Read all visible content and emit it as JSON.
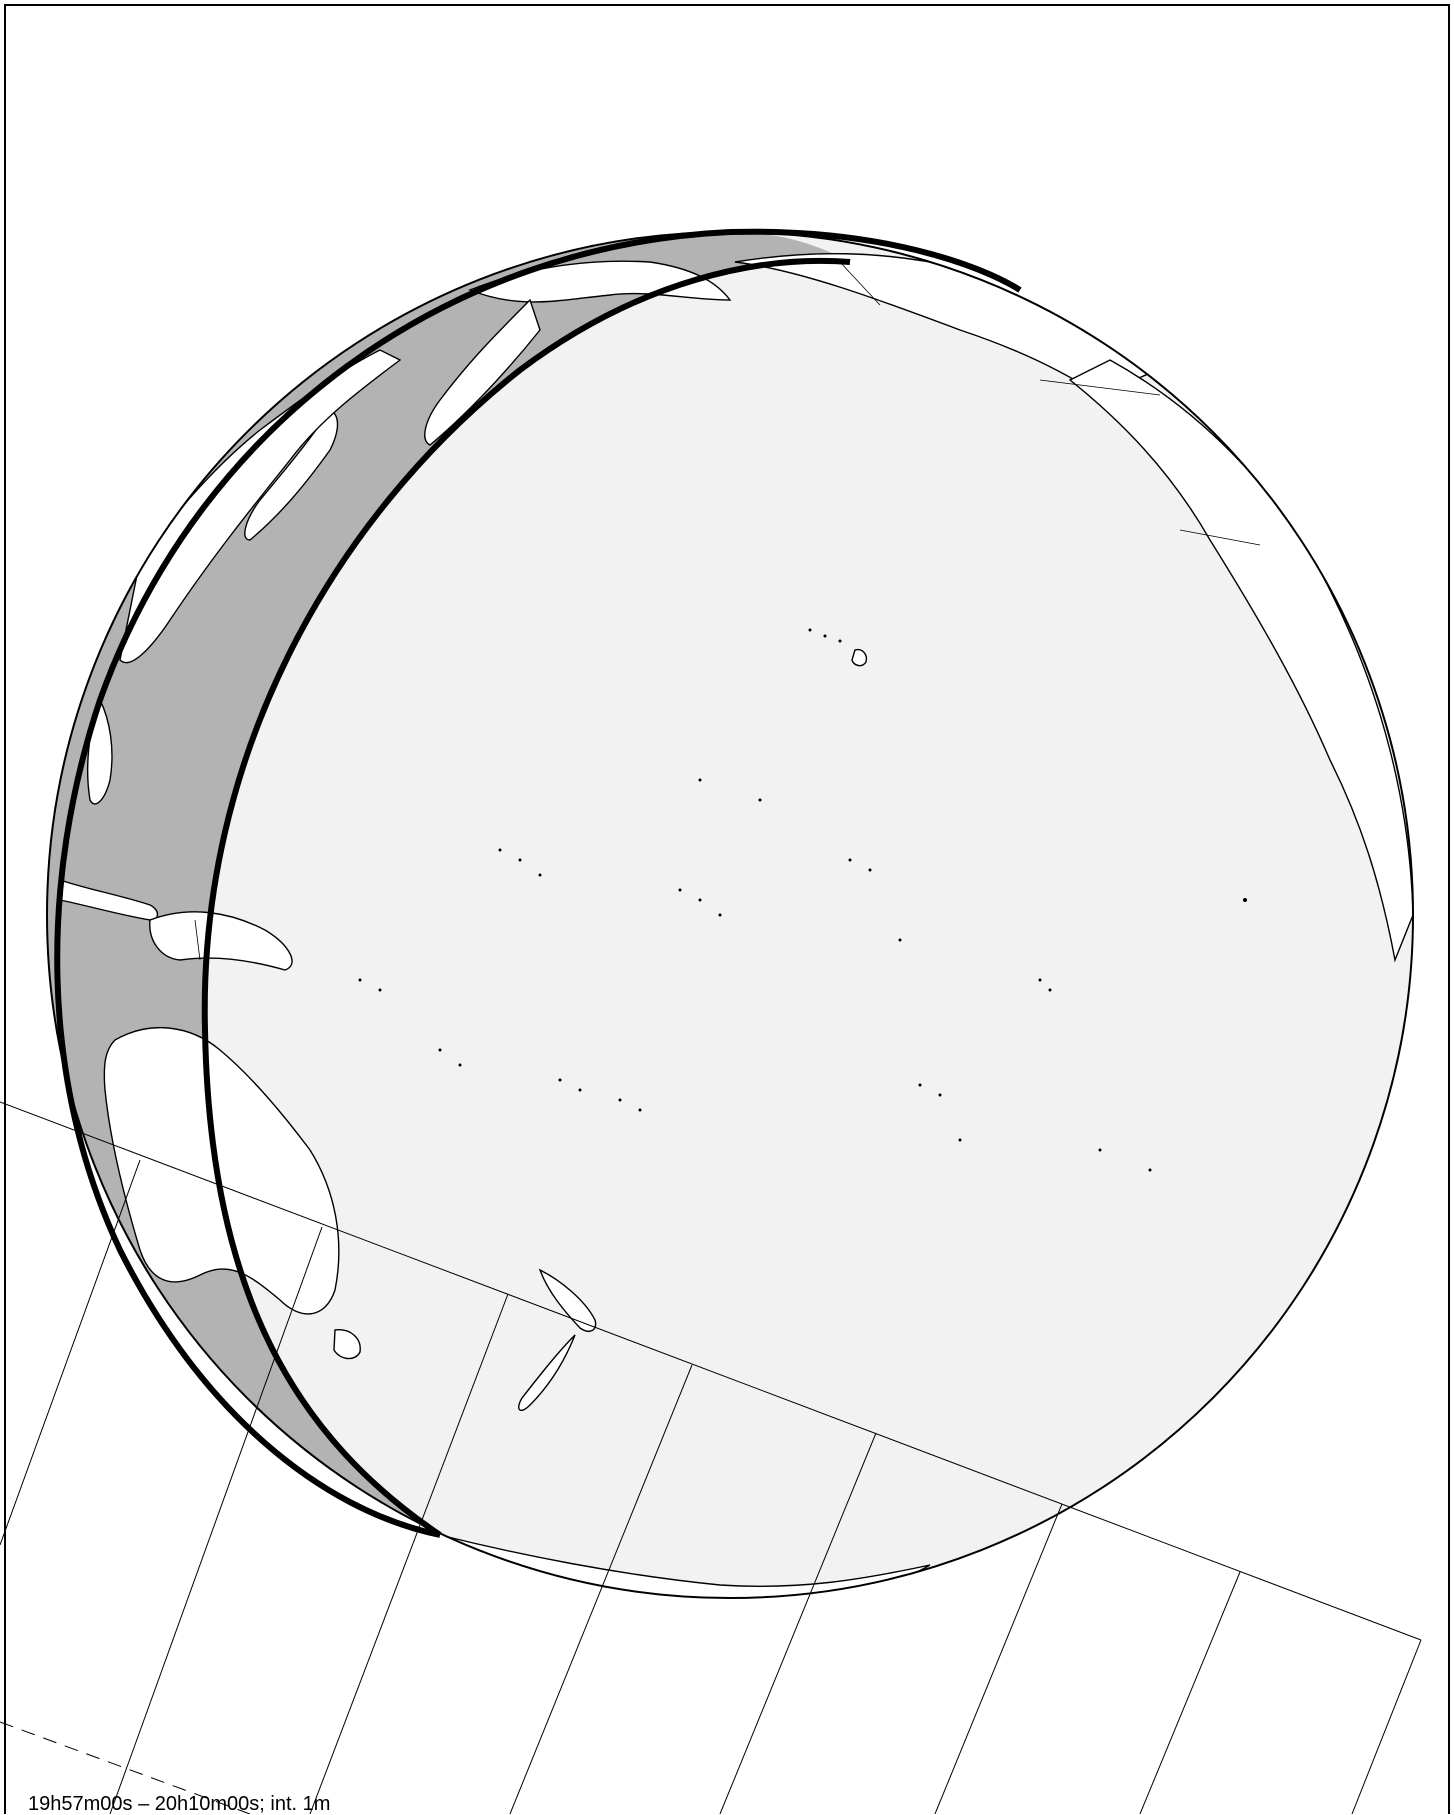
{
  "caption": "19h57m00s – 20h10m00s; int.  1m",
  "colors": {
    "background": "#ffffff",
    "frame": "#000000",
    "ocean_day": "#f2f2f2",
    "night_shade": "#b3b3b3",
    "land": "#ffffff",
    "coastline": "#000000",
    "terminator": "#000000"
  },
  "map": {
    "projection": "orthographic",
    "terminator_lines": 2,
    "eclipse_grid": {
      "central_line": "solid",
      "limit_line": "dashed",
      "time_cross_lines": 8
    }
  }
}
